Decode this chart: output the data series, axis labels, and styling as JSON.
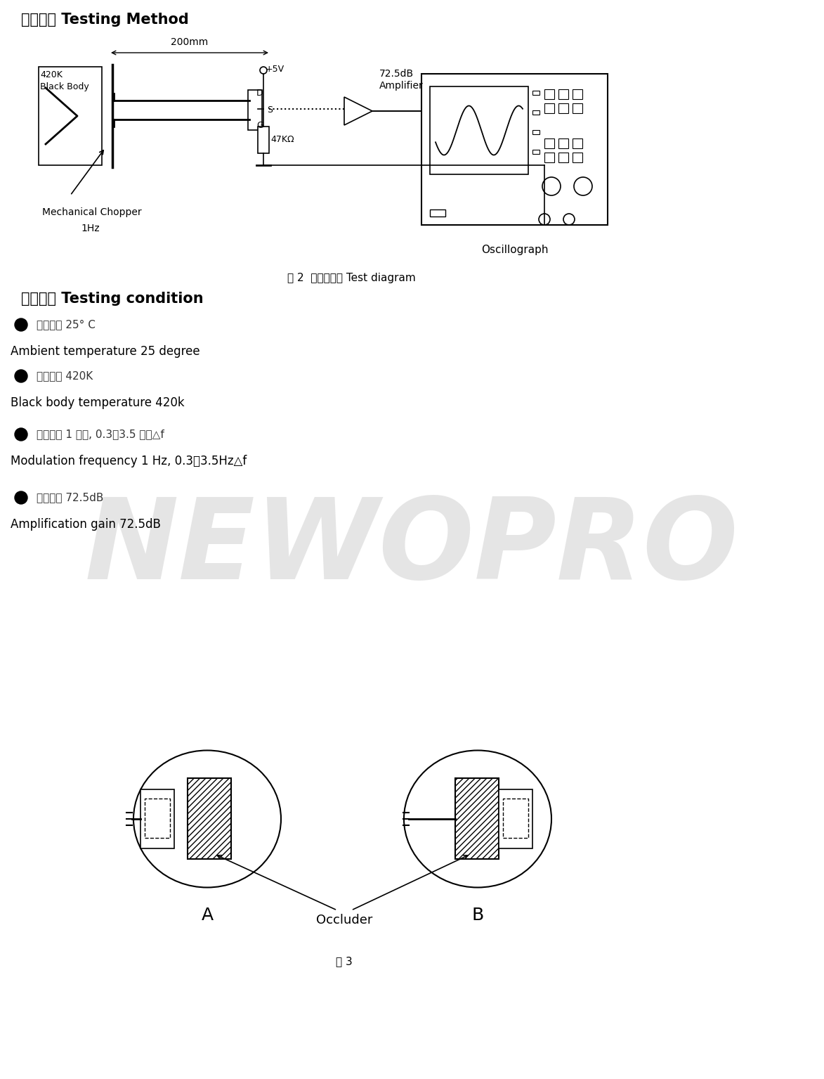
{
  "title_section1": "测试方法 Testing Method",
  "title_section2": "测试条件 Testing condition",
  "fig2_caption": "图 2  测试示意图 Test diagram",
  "fig3_caption": "图 3",
  "bullet_items": [
    {
      "zh": "环境温度 25° C",
      "en": "Ambient temperature 25 degree"
    },
    {
      "zh": "黑体温度 420K",
      "en": "Black body temperature 420k"
    },
    {
      "zh": "调制频率 1 赫兹, 0.3～3.5 赫兹△f",
      "en": "Modulation frequency 1 Hz, 0.3～3.5Hz△f"
    },
    {
      "zh": "放大增益 72.5dB",
      "en": "Amplification gain 72.5dB"
    }
  ],
  "watermark_text": "NEWOPRO",
  "bg_color": "#ffffff",
  "text_color": "#000000",
  "gray_color": "#888888",
  "light_gray": "#cccccc"
}
